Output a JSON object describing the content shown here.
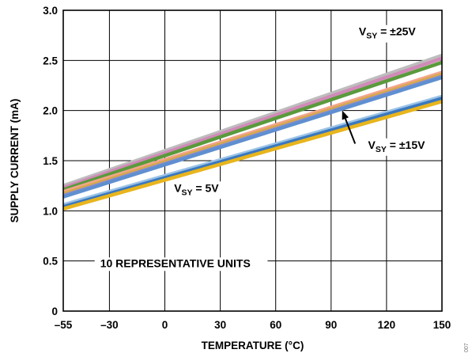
{
  "chart_data": {
    "type": "line",
    "xlabel": "TEMPERATURE (°C)",
    "ylabel": "SUPPLY CURRENT (mA)",
    "xlim": [
      -55,
      150
    ],
    "ylim": [
      0,
      3.0
    ],
    "xticks": [
      -55,
      -30,
      0,
      30,
      60,
      90,
      120,
      150
    ],
    "xtick_labels": [
      "–55",
      "–30",
      "0",
      "30",
      "60",
      "90",
      "120",
      "150"
    ],
    "yticks": [
      0,
      0.5,
      1.0,
      1.5,
      2.0,
      2.5,
      3.0
    ],
    "ytick_labels": [
      "0",
      "0.5",
      "1.0",
      "1.5",
      "2.0",
      "2.5",
      "3.0"
    ],
    "grid": true,
    "series": [
      {
        "values": [
          [
            -55,
            1.25
          ],
          [
            150,
            2.55
          ]
        ],
        "color": "#bdbdbd"
      },
      {
        "values": [
          [
            -55,
            1.23
          ],
          [
            150,
            2.52
          ]
        ],
        "color": "#d08ab8"
      },
      {
        "values": [
          [
            -55,
            1.21
          ],
          [
            150,
            2.48
          ]
        ],
        "color": "#5a9a3c"
      },
      {
        "values": [
          [
            -55,
            1.19
          ],
          [
            150,
            2.38
          ]
        ],
        "color": "#f2a58a"
      },
      {
        "values": [
          [
            -55,
            1.17
          ],
          [
            150,
            2.36
          ]
        ],
        "color": "#d7a84d"
      },
      {
        "values": [
          [
            -55,
            1.15
          ],
          [
            150,
            2.34
          ]
        ],
        "color": "#8c8ccd"
      },
      {
        "values": [
          [
            -55,
            1.14
          ],
          [
            150,
            2.33
          ]
        ],
        "color": "#5f8fd0"
      },
      {
        "values": [
          [
            -55,
            1.06
          ],
          [
            150,
            2.14
          ]
        ],
        "color": "#9cc3e5"
      },
      {
        "values": [
          [
            -55,
            1.04
          ],
          [
            150,
            2.12
          ]
        ],
        "color": "#3a78c0"
      },
      {
        "values": [
          [
            -55,
            1.02
          ],
          [
            150,
            2.09
          ]
        ],
        "color": "#e8b51d"
      }
    ],
    "annotations": [
      {
        "id": "vsy25",
        "pre": "V",
        "sub": "SY",
        "post": " = ±25V",
        "x": 105,
        "y": 2.75
      },
      {
        "id": "vsy15",
        "pre": "V",
        "sub": "SY",
        "post": " = ±15V",
        "x": 110,
        "y": 1.62
      },
      {
        "id": "vsy5",
        "pre": "V",
        "sub": "SY",
        "post": " = 5V",
        "x": 5,
        "y": 1.19
      },
      {
        "id": "units",
        "text": "10 REPRESENTATIVE UNITS",
        "x": -35,
        "y": 0.44
      }
    ],
    "arrow": {
      "from": [
        103,
        1.67
      ],
      "to": [
        96,
        2.0
      ]
    }
  },
  "figure_id": "007"
}
